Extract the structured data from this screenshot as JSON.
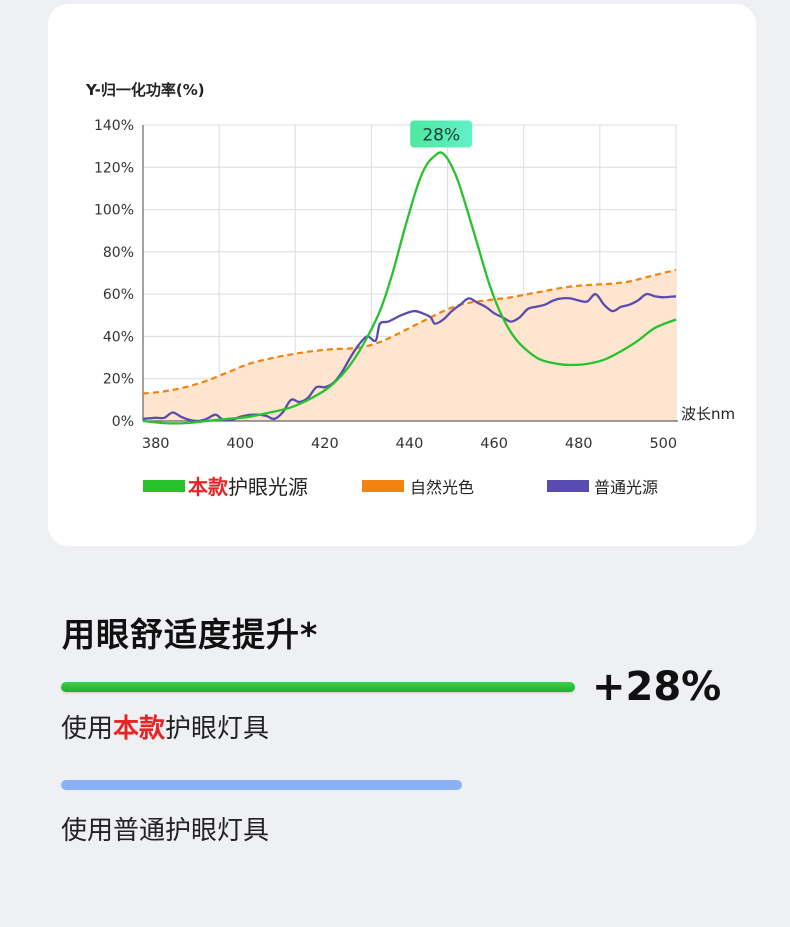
{
  "chart_data": {
    "type": "line",
    "ylabel": "Y-归一化功率(%)",
    "xlabel": "波长nm",
    "x_ticks": [
      "380",
      "400",
      "420",
      "440",
      "460",
      "480",
      "500"
    ],
    "y_ticks": [
      "0%",
      "20%",
      "40%",
      "60%",
      "80%",
      "100%",
      "120%",
      "140%"
    ],
    "xlim": [
      377,
      503
    ],
    "ylim": [
      0,
      140
    ],
    "grid": true,
    "peak_label": "28%",
    "series": [
      {
        "name": "本款护眼光源",
        "name_highlight": "本款",
        "name_rest": "护眼光源",
        "color": "#27c22e",
        "style": "solid",
        "points": [
          [
            377,
            0
          ],
          [
            382,
            -1
          ],
          [
            387,
            -1
          ],
          [
            392,
            0
          ],
          [
            397,
            1
          ],
          [
            402,
            2
          ],
          [
            407,
            4
          ],
          [
            412,
            6.5
          ],
          [
            417,
            11
          ],
          [
            421,
            16
          ],
          [
            425,
            24
          ],
          [
            429,
            36
          ],
          [
            433,
            52
          ],
          [
            436,
            70
          ],
          [
            439,
            92
          ],
          [
            442,
            112
          ],
          [
            444,
            121
          ],
          [
            446,
            125.5
          ],
          [
            447.5,
            127
          ],
          [
            449,
            124
          ],
          [
            451,
            116
          ],
          [
            453,
            104
          ],
          [
            456,
            84
          ],
          [
            459,
            64
          ],
          [
            462,
            49
          ],
          [
            465,
            39
          ],
          [
            468,
            33
          ],
          [
            471,
            29
          ],
          [
            475,
            27
          ],
          [
            478,
            26.5
          ],
          [
            482,
            27
          ],
          [
            486,
            29
          ],
          [
            490,
            33
          ],
          [
            494,
            38
          ],
          [
            498,
            44
          ],
          [
            503,
            48
          ]
        ]
      },
      {
        "name": "自然光色",
        "color": "#f2830f",
        "style": "dashed",
        "points": [
          [
            377,
            13
          ],
          [
            382,
            14
          ],
          [
            387,
            16
          ],
          [
            392,
            19
          ],
          [
            397,
            23
          ],
          [
            402,
            27
          ],
          [
            407,
            29.5
          ],
          [
            412,
            31.5
          ],
          [
            417,
            33
          ],
          [
            422,
            34
          ],
          [
            427,
            34.5
          ],
          [
            431,
            36
          ],
          [
            435,
            39
          ],
          [
            440,
            44
          ],
          [
            444,
            48
          ],
          [
            448,
            52
          ],
          [
            452,
            55
          ],
          [
            456,
            56.5
          ],
          [
            460,
            57.5
          ],
          [
            464,
            58.5
          ],
          [
            468,
            60
          ],
          [
            472,
            61.5
          ],
          [
            476,
            63
          ],
          [
            480,
            64
          ],
          [
            484,
            64.5
          ],
          [
            488,
            65
          ],
          [
            492,
            66
          ],
          [
            496,
            68
          ],
          [
            500,
            70
          ],
          [
            503,
            71.5
          ]
        ]
      },
      {
        "name": "普通光源",
        "color": "#5a4bb0",
        "style": "solid",
        "points": [
          [
            377,
            1
          ],
          [
            380,
            1.5
          ],
          [
            382,
            1.5
          ],
          [
            384,
            4
          ],
          [
            386,
            2
          ],
          [
            388,
            0.5
          ],
          [
            390,
            0
          ],
          [
            392,
            1
          ],
          [
            394,
            3
          ],
          [
            395,
            2
          ],
          [
            396,
            0.5
          ],
          [
            398,
            0.5
          ],
          [
            400,
            2
          ],
          [
            403,
            3
          ],
          [
            406,
            2.5
          ],
          [
            408,
            1
          ],
          [
            410,
            4
          ],
          [
            412,
            10
          ],
          [
            414,
            9
          ],
          [
            416,
            11
          ],
          [
            418,
            16
          ],
          [
            420,
            16
          ],
          [
            422,
            18
          ],
          [
            424,
            23
          ],
          [
            426,
            30
          ],
          [
            428,
            36
          ],
          [
            430,
            40
          ],
          [
            432,
            38
          ],
          [
            433,
            46
          ],
          [
            435,
            47
          ],
          [
            438,
            50
          ],
          [
            441,
            52
          ],
          [
            443,
            51
          ],
          [
            445,
            49
          ],
          [
            446,
            46
          ],
          [
            448,
            48
          ],
          [
            450,
            52
          ],
          [
            452,
            55
          ],
          [
            454,
            58
          ],
          [
            456,
            56
          ],
          [
            458,
            54
          ],
          [
            460,
            51
          ],
          [
            462,
            49
          ],
          [
            464,
            47
          ],
          [
            466,
            49
          ],
          [
            468,
            53
          ],
          [
            470,
            54
          ],
          [
            472,
            55
          ],
          [
            474,
            57
          ],
          [
            476,
            58
          ],
          [
            478,
            58
          ],
          [
            480,
            57
          ],
          [
            482,
            56.5
          ],
          [
            484,
            60
          ],
          [
            486,
            55
          ],
          [
            488,
            52
          ],
          [
            490,
            54
          ],
          [
            492,
            55
          ],
          [
            494,
            57
          ],
          [
            496,
            60
          ],
          [
            498,
            59
          ],
          [
            500,
            58.5
          ],
          [
            503,
            59
          ]
        ]
      }
    ]
  },
  "comparison": {
    "title": "用眼舒适度提升*",
    "delta": "+28%",
    "bars": [
      {
        "label_prefix": "使用",
        "label_highlight": "本款",
        "label_suffix": "护眼灯具",
        "value": 100,
        "color": "#27c22e"
      },
      {
        "label_prefix": "使用普通护眼灯具",
        "label_highlight": "",
        "label_suffix": "",
        "value": 78,
        "color": "#8ab1f4"
      }
    ]
  },
  "colors": {
    "highlight": "#e52425",
    "peak_badge_from": "#4ee89f",
    "peak_badge_to": "#62f0c8",
    "fill": "#fde5cf"
  }
}
